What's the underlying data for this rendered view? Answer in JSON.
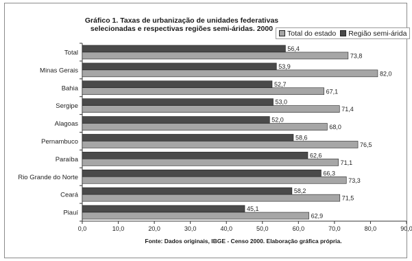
{
  "chart_data": {
    "type": "bar",
    "orientation": "horizontal",
    "title_lines": [
      "Gráfico 1. Taxas de urbanização de unidades federativas",
      "selecionadas e respectivas regiões semi-áridas. 2000"
    ],
    "source": "Fonte: Dados originais, IBGE - Censo 2000. Elaboração gráfica própria.",
    "categories": [
      "Total",
      "Minas Gerais",
      "Bahia",
      "Sergipe",
      "Alagoas",
      "Pernambuco",
      "Paraíba",
      "Rio Grande do Norte",
      "Ceará",
      "Piauí"
    ],
    "series": [
      {
        "name": "Região semi-árida",
        "color": "#4a4a4a",
        "values": [
          56.4,
          53.9,
          52.7,
          53.0,
          52.0,
          58.6,
          62.6,
          66.3,
          58.2,
          45.1
        ],
        "labels": [
          "56,4",
          "53,9",
          "52,7",
          "53,0",
          "52,0",
          "58,6",
          "62,6",
          "66,3",
          "58,2",
          "45,1"
        ]
      },
      {
        "name": "Total do estado",
        "color": "#a6a6a6",
        "values": [
          73.8,
          82.0,
          67.1,
          71.4,
          68.0,
          76.5,
          71.1,
          73.3,
          71.5,
          62.9
        ],
        "labels": [
          "73,8",
          "82,0",
          "67,1",
          "71,4",
          "68,0",
          "76,5",
          "71,1",
          "73,3",
          "71,5",
          "62,9"
        ]
      }
    ],
    "legend_order": [
      "Total do estado",
      "Região semi-árida"
    ],
    "xlim": [
      0,
      90
    ],
    "xticks": [
      0,
      10,
      20,
      30,
      40,
      50,
      60,
      70,
      80,
      90
    ],
    "xtick_labels": [
      "0,0",
      "10,0",
      "20,0",
      "30,0",
      "40,0",
      "50,0",
      "60,0",
      "70,0",
      "80,0",
      "90,0"
    ],
    "grid": false,
    "legend_position": "top-right"
  }
}
